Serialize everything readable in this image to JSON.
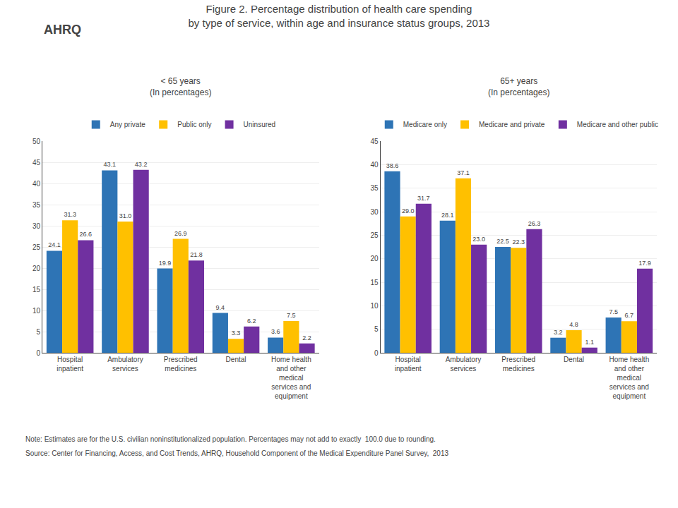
{
  "title": "Figure 2. Percentage distribution of health care spending\nby type of service, within age and insurance status groups, 2013",
  "annotations": [
    "AHRQ",
    "Note: Estimates are for the U.S. civilian noninstitutionalized population. Percentages may not add to exactly  100.0 due to rounding.",
    "Source: Center for Financing, Access, and Cost Trends, AHRQ, Household Component of the Medical Expenditure Panel Survey,  2013"
  ],
  "chart_data": [
    {
      "type": "bar",
      "subtitle": "< 65 years\n(In percentages)",
      "categories": [
        "Hospital\ninpatient",
        "Ambulatory\nservices",
        "Prescribed\nmedicines",
        "Dental",
        "Home health\nand other\nmedical\nservices and\nequipment"
      ],
      "series": [
        {
          "name": "Any private",
          "color": "#2E74B5",
          "values": [
            24.1,
            43.1,
            19.9,
            9.4,
            3.6
          ]
        },
        {
          "name": "Public only",
          "color": "#FFC000",
          "values": [
            31.3,
            31.0,
            26.9,
            3.3,
            7.5
          ],
          "value_labels": [
            "31.3",
            "31.0",
            "26.9",
            "3.3",
            "7.5"
          ]
        },
        {
          "name": "Uninsured",
          "color": "#7030A0",
          "values": [
            26.6,
            43.2,
            21.8,
            6.2,
            2.2
          ]
        }
      ],
      "ylim": [
        0,
        50
      ],
      "yticks": [
        0,
        5,
        10,
        15,
        20,
        25,
        30,
        35,
        40,
        45,
        50
      ],
      "grid": true,
      "data_labels": true,
      "legend": "top"
    },
    {
      "type": "bar",
      "subtitle": "65+ years\n(In percentages)",
      "categories": [
        "Hospital\ninpatient",
        "Ambulatory\nservices",
        "Prescribed\nmedicines",
        "Dental",
        "Home health\nand other\nmedical\nservices and\nequipment"
      ],
      "series": [
        {
          "name": "Medicare only",
          "color": "#2E74B5",
          "values": [
            38.6,
            28.1,
            22.5,
            3.2,
            7.5
          ]
        },
        {
          "name": "Medicare and private",
          "color": "#FFC000",
          "values": [
            29.0,
            37.1,
            22.3,
            4.8,
            6.7
          ],
          "value_labels": [
            "29.0",
            "37.1",
            "22.3",
            "4.8",
            "6.7"
          ]
        },
        {
          "name": "Medicare and other public",
          "color": "#7030A0",
          "values": [
            31.7,
            23.0,
            26.3,
            1.1,
            17.9
          ],
          "value_labels": [
            "31.7",
            "23.0",
            "26.3",
            "1.1",
            "17.9"
          ]
        }
      ],
      "ylim": [
        0,
        45
      ],
      "yticks": [
        0,
        5,
        10,
        15,
        20,
        25,
        30,
        35,
        40,
        45
      ],
      "grid": true,
      "data_labels": true,
      "legend": "top"
    }
  ]
}
